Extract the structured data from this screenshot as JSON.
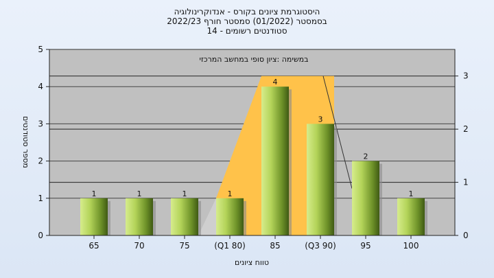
{
  "chart_data": {
    "type": "bar",
    "title_lines": [
      "היסטוגרמת ציונים בקורס - אנדוקרינולוגיה",
      "בסמסטר  (01/2022)  סמסטר חורף  2022/23",
      "סטודנטים רשומים - 14"
    ],
    "overlay_label": "במשימה :ציון סופי במחשב המרכזי",
    "categories": [
      "65",
      "70",
      "75",
      "(Q1 80)",
      "85",
      "(Q3 90)",
      "95",
      "100"
    ],
    "values": [
      1,
      1,
      1,
      1,
      4,
      3,
      2,
      1
    ],
    "data_labels": [
      "1",
      "1",
      "1",
      "1",
      "4",
      "3",
      "2",
      "1"
    ],
    "xlabel": "טווח ציונים",
    "ylabel": "מספר סטודנטים",
    "ylim": [
      0,
      5
    ],
    "y_ticks": [
      "0",
      "1",
      "2",
      "3",
      "4",
      "5"
    ],
    "y2_ticks": [
      "0",
      "1",
      "2",
      "3"
    ],
    "y2_lim": [
      0,
      3.5
    ],
    "iqr_band": {
      "from_category": "(Q1 80)",
      "to_category": "(Q3 90)"
    },
    "grid": true,
    "colors": {
      "plot_bg": "#c0c0c0",
      "bar_light": "#d6ec8c",
      "bar_dark": "#4a6a1c",
      "iqr_band": "#ffc24a"
    }
  }
}
